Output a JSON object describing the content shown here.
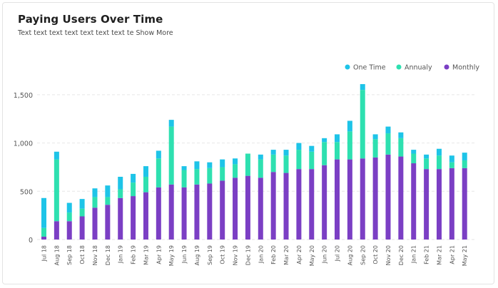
{
  "header": {
    "title": "Paying Users Over Time",
    "subtitle": "Text text text text text text text te",
    "show_more": "Show More"
  },
  "chart_data": {
    "type": "bar",
    "stacked": true,
    "title": "Paying Users Over Time",
    "xlabel": "",
    "ylabel": "",
    "ylim": [
      0,
      1700
    ],
    "yticks": [
      0,
      500,
      1000,
      1500
    ],
    "ytick_labels": [
      "0",
      "500",
      "1,000",
      "1,500"
    ],
    "grid": "horizontal dashed",
    "legend_position": "top-right",
    "categories": [
      "Jul 18",
      "Aug 18",
      "Sep 18",
      "Oct 18",
      "Nov 18",
      "Dec 18",
      "Jan 19",
      "Feb 19",
      "Mar 19",
      "Apr 19",
      "May 19",
      "Jun 19",
      "Aug 19",
      "Sep 19",
      "Oct 19",
      "Nov 19",
      "Dec 19",
      "Jan 20",
      "Feb 20",
      "Mar 20",
      "Apr 20",
      "May 20",
      "Jun 20",
      "Jul 20",
      "Aug 20",
      "Sep 20",
      "Oct 20",
      "Nov 20",
      "Dec 20",
      "Jan 21",
      "Feb 21",
      "Mar 21",
      "Apr 21",
      "May 21"
    ],
    "series": [
      {
        "name": "Monthly",
        "color": "#7b3fc4",
        "values": [
          30,
          190,
          190,
          240,
          330,
          360,
          430,
          450,
          490,
          540,
          570,
          540,
          570,
          580,
          610,
          640,
          660,
          640,
          700,
          690,
          730,
          730,
          770,
          830,
          830,
          840,
          850,
          880,
          860,
          790,
          730,
          730,
          740,
          740
        ]
      },
      {
        "name": "Annualy",
        "color": "#2ee0b0",
        "values": [
          90,
          640,
          90,
          80,
          110,
          80,
          90,
          140,
          160,
          300,
          600,
          180,
          160,
          160,
          140,
          140,
          230,
          190,
          180,
          180,
          200,
          180,
          240,
          180,
          290,
          710,
          190,
          220,
          190,
          100,
          110,
          140,
          60,
          80
        ]
      },
      {
        "name": "One Time",
        "color": "#1ec4e8",
        "values": [
          310,
          80,
          100,
          100,
          90,
          120,
          130,
          90,
          110,
          80,
          70,
          40,
          80,
          60,
          80,
          60,
          0,
          50,
          50,
          60,
          70,
          60,
          40,
          80,
          110,
          60,
          50,
          70,
          60,
          40,
          40,
          70,
          70,
          80
        ]
      }
    ],
    "legend_order": [
      "One Time",
      "Annualy",
      "Monthly"
    ]
  }
}
